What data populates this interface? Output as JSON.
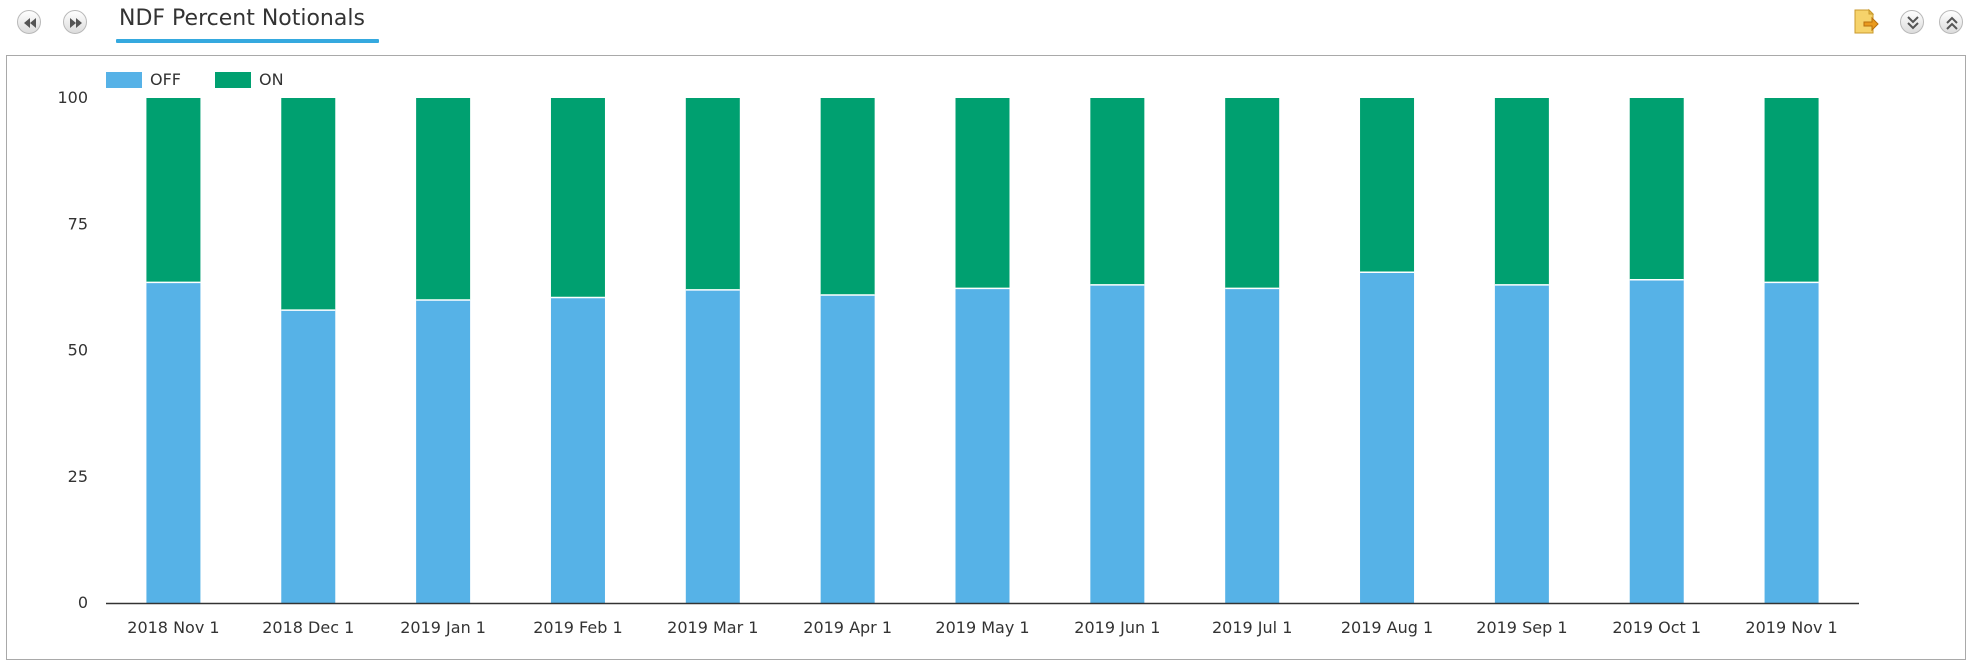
{
  "header": {
    "title": "NDF Percent Notionals"
  },
  "icons": {
    "prev": "rewind-icon",
    "next": "fast-forward-icon",
    "export": "export-document-icon",
    "collapse_down": "chevron-double-down-icon",
    "collapse_up": "chevron-double-up-icon"
  },
  "colors": {
    "off": "#56b2e7",
    "on": "#00a070",
    "accent": "#35a9df"
  },
  "chart_data": {
    "type": "bar",
    "stacked": true,
    "categories": [
      "2018 Nov 1",
      "2018 Dec 1",
      "2019 Jan 1",
      "2019 Feb 1",
      "2019 Mar 1",
      "2019 Apr 1",
      "2019 May 1",
      "2019 Jun 1",
      "2019 Jul 1",
      "2019 Aug 1",
      "2019 Sep 1",
      "2019 Oct 1",
      "2019 Nov 1"
    ],
    "series": [
      {
        "name": "OFF",
        "color": "#56b2e7",
        "values": [
          63.5,
          58,
          60,
          60.5,
          62,
          61,
          62.3,
          63,
          62.3,
          65.5,
          63,
          64,
          63.5
        ]
      },
      {
        "name": "ON",
        "color": "#00a070",
        "values": [
          36.5,
          42,
          40,
          39.5,
          38,
          39,
          37.7,
          37,
          37.7,
          34.5,
          37,
          36,
          36.5
        ]
      }
    ],
    "yticks": [
      0,
      25,
      50,
      75,
      100
    ],
    "ylim": [
      0,
      100
    ],
    "legend_position": "top-left",
    "grid": false,
    "title": "",
    "xlabel": "",
    "ylabel": ""
  }
}
